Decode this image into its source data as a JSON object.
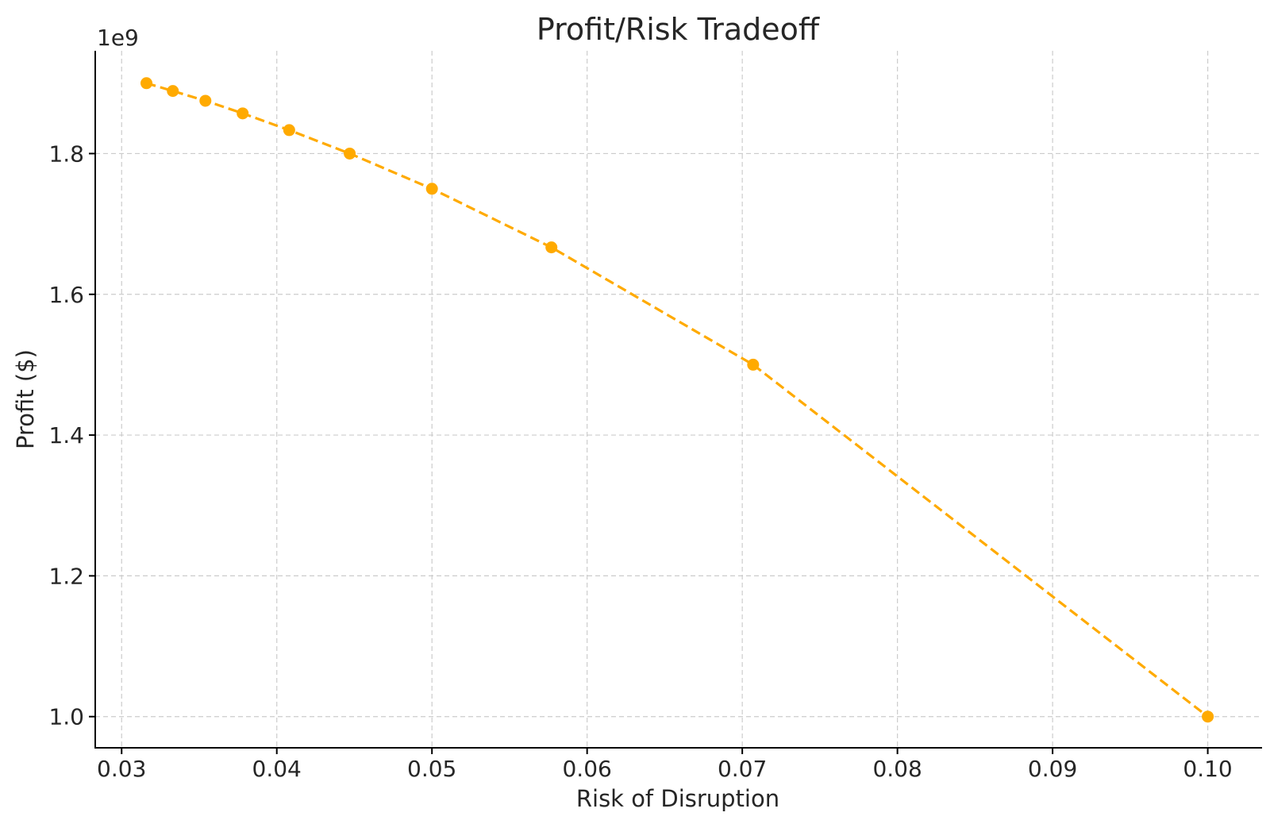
{
  "chart_data": {
    "type": "line",
    "title": "Profit/Risk Tradeoff",
    "xlabel": "Risk of Disruption",
    "ylabel": "Profit ($)",
    "y_offset_text": "1e9",
    "y_scale_factor": 1000000000,
    "xlim": [
      0.0283,
      0.1035
    ],
    "ylim": [
      0.9557,
      1.946
    ],
    "x_ticks": [
      0.03,
      0.04,
      0.05,
      0.06,
      0.07,
      0.08,
      0.09,
      0.1
    ],
    "x_tick_labels": [
      "0.03",
      "0.04",
      "0.05",
      "0.06",
      "0.07",
      "0.08",
      "0.09",
      "0.10"
    ],
    "y_ticks": [
      1.0,
      1.2,
      1.4,
      1.6,
      1.8
    ],
    "y_tick_labels": [
      "1.0",
      "1.2",
      "1.4",
      "1.6",
      "1.8"
    ],
    "grid": true,
    "legend": "none",
    "series": [
      {
        "color": "#FFAA00",
        "line_style": "dashed",
        "marker": "circle",
        "x": [
          0.0316,
          0.0333,
          0.0354,
          0.0378,
          0.0408,
          0.0447,
          0.05,
          0.0577,
          0.0707,
          0.1
        ],
        "y": [
          1.9,
          1.8889,
          1.875,
          1.8571,
          1.8333,
          1.8,
          1.75,
          1.6667,
          1.5,
          1.0
        ]
      }
    ]
  }
}
